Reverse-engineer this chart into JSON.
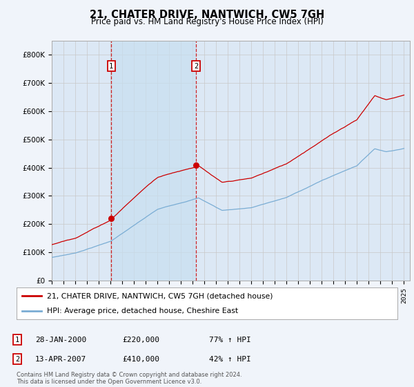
{
  "title": "21, CHATER DRIVE, NANTWICH, CW5 7GH",
  "subtitle": "Price paid vs. HM Land Registry's House Price Index (HPI)",
  "background_color": "#f0f4fa",
  "plot_bg_color": "#dce8f5",
  "ylim": [
    0,
    850000
  ],
  "yticks": [
    0,
    100000,
    200000,
    300000,
    400000,
    500000,
    600000,
    700000,
    800000
  ],
  "ytick_labels": [
    "£0",
    "£100K",
    "£200K",
    "£300K",
    "£400K",
    "£500K",
    "£600K",
    "£700K",
    "£800K"
  ],
  "xlim_start": 1995,
  "xlim_end": 2025.5,
  "sale1_date": 2000.07,
  "sale1_price": 220000,
  "sale1_label": "1",
  "sale2_date": 2007.28,
  "sale2_price": 410000,
  "sale2_label": "2",
  "legend_line1": "21, CHATER DRIVE, NANTWICH, CW5 7GH (detached house)",
  "legend_line2": "HPI: Average price, detached house, Cheshire East",
  "annotation1_date": "28-JAN-2000",
  "annotation1_price": "£220,000",
  "annotation1_hpi": "77% ↑ HPI",
  "annotation2_date": "13-APR-2007",
  "annotation2_price": "£410,000",
  "annotation2_hpi": "42% ↑ HPI",
  "footer": "Contains HM Land Registry data © Crown copyright and database right 2024.\nThis data is licensed under the Open Government Licence v3.0.",
  "red_color": "#cc0000",
  "blue_color": "#7aadd4",
  "shade_color": "#c8dff0",
  "grid_color": "#c8c8c8"
}
